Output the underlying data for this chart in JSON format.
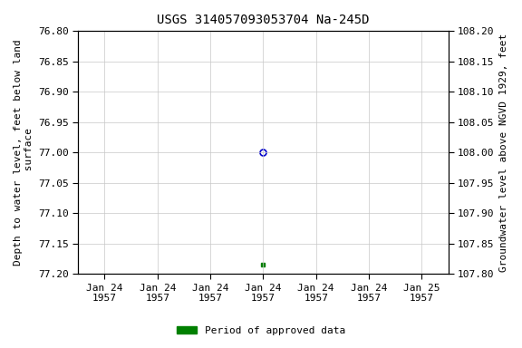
{
  "title": "USGS 314057093053704 Na-245D",
  "ylabel_left": "Depth to water level, feet below land\n surface",
  "ylabel_right": "Groundwater level above NGVD 1929, feet",
  "ylim_left": [
    77.2,
    76.8
  ],
  "ylim_right": [
    107.8,
    108.2
  ],
  "yticks_left": [
    76.8,
    76.85,
    76.9,
    76.95,
    77.0,
    77.05,
    77.1,
    77.15,
    77.2
  ],
  "yticks_right": [
    108.2,
    108.15,
    108.1,
    108.05,
    108.0,
    107.95,
    107.9,
    107.85,
    107.8
  ],
  "point_open_x": 3.0,
  "point_open_y": 77.0,
  "point_open_color": "#0000cc",
  "point_filled_x": 3.0,
  "point_filled_y": 77.185,
  "point_filled_color": "#008000",
  "xlim": [
    -0.5,
    6.5
  ],
  "xtick_positions": [
    0,
    1,
    2,
    3,
    4,
    5,
    6
  ],
  "xtick_labels": [
    "Jan 24\n1957",
    "Jan 24\n1957",
    "Jan 24\n1957",
    "Jan 24\n1957",
    "Jan 24\n1957",
    "Jan 24\n1957",
    "Jan 25\n1957"
  ],
  "grid_color": "#c8c8c8",
  "legend_label": "Period of approved data",
  "legend_color": "#008000",
  "background_color": "#ffffff",
  "title_fontsize": 10,
  "axis_label_fontsize": 8,
  "tick_fontsize": 8,
  "marker_open_size": 5,
  "marker_filled_size": 3
}
